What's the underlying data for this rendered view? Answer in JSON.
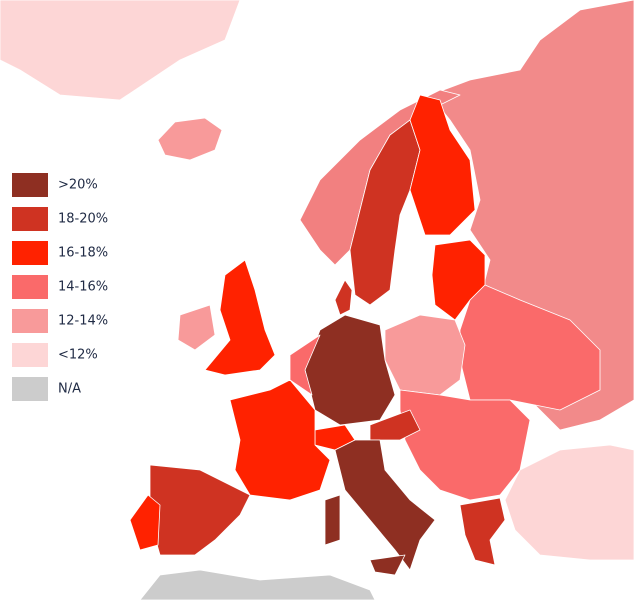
{
  "legend": {
    "items": [
      {
        "label": ">20%",
        "color": "#8e2f22"
      },
      {
        "label": "18-20%",
        "color": "#cf3322"
      },
      {
        "label": "16-18%",
        "color": "#ff2200"
      },
      {
        "label": "14-16%",
        "color": "#fa6a6a"
      },
      {
        "label": "12-14%",
        "color": "#f89a9a"
      },
      {
        "label": "<12%",
        "color": "#fdd6d6"
      },
      {
        "label": "N/A",
        "color": "#cccccc"
      }
    ]
  }
}
